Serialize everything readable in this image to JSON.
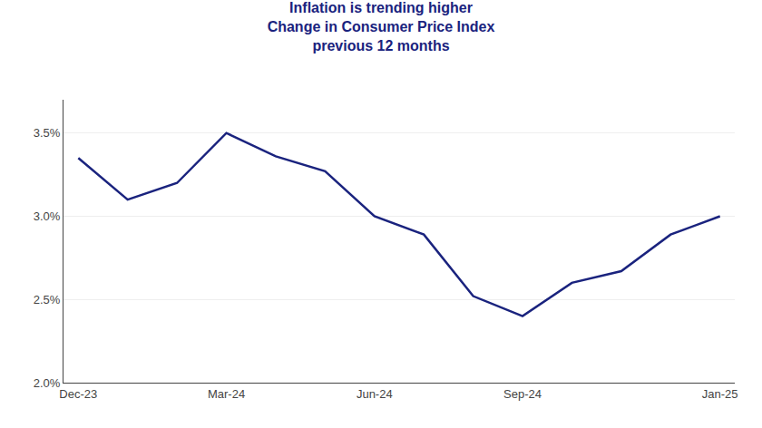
{
  "chart_data": {
    "type": "line",
    "title": "Inflation is trending higher",
    "subtitle": "Change in Consumer Price Index\nprevious 12 months",
    "categories": [
      "Dec-23",
      null,
      null,
      "Mar-24",
      null,
      null,
      "Jun-24",
      null,
      null,
      "Sep-24",
      null,
      null,
      null,
      "Jan-25"
    ],
    "values": [
      3.35,
      3.1,
      3.2,
      3.5,
      3.36,
      3.27,
      3.0,
      2.89,
      2.52,
      2.4,
      2.6,
      2.67,
      2.89,
      3.0
    ],
    "color": "#1a237e",
    "ylim": [
      2.0,
      3.7
    ],
    "yticks": [
      {
        "value": 2.0,
        "label": "2.0%"
      },
      {
        "value": 2.5,
        "label": "2.5%"
      },
      {
        "value": 3.0,
        "label": "3.0%"
      },
      {
        "value": 3.5,
        "label": "3.5%"
      }
    ],
    "grid": true
  }
}
